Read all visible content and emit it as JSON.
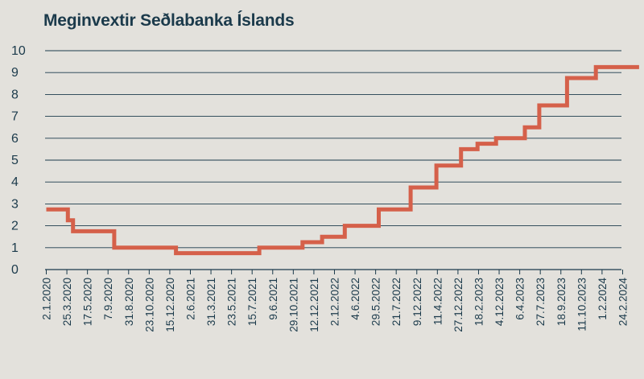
{
  "chart_data": {
    "type": "line",
    "step": true,
    "title": "Meginvextir Seðlabanka Íslands",
    "xlabel": "",
    "ylabel": "",
    "ylim": [
      0,
      10
    ],
    "yticks": [
      "0",
      "1",
      "2",
      "3",
      "4",
      "5",
      "6",
      "7",
      "8",
      "9",
      "10"
    ],
    "grid": "horizontal",
    "x_tick_labels": [
      "2.1.2020",
      "25.3.2020",
      "17.5.2020",
      "7.9.2020",
      "31.8.2020",
      "23.10.2020",
      "15.12.2020",
      "2.6.2021",
      "31.3.2021",
      "23.5.2021",
      "15.7.2021",
      "9.6.2021",
      "29.10.2021",
      "12.12.2021",
      "2.12.2022",
      "4.6.2022",
      "29.5.2022",
      "21.7.2022",
      "9.12.2022",
      "11.4.2022",
      "27.12.2022",
      "18.2.2023",
      "4.12.2023",
      "6.4.2023",
      "27.7.2023",
      "18.9.2023",
      "11.10.2023",
      "1.2.2024",
      "24.2.2024"
    ],
    "series": [
      {
        "color": "#d5604a",
        "points": [
          [
            0,
            2.75
          ],
          [
            0.8,
            2.75
          ],
          [
            1.05,
            2.25
          ],
          [
            1.3,
            1.75
          ],
          [
            3.05,
            1.75
          ],
          [
            3.3,
            1.0
          ],
          [
            6.05,
            1.0
          ],
          [
            6.3,
            0.75
          ],
          [
            10.1,
            0.75
          ],
          [
            10.35,
            1.0
          ],
          [
            12.2,
            1.0
          ],
          [
            12.45,
            1.25
          ],
          [
            13.15,
            1.25
          ],
          [
            13.4,
            1.5
          ],
          [
            14.2,
            1.5
          ],
          [
            14.5,
            2.0
          ],
          [
            15.9,
            2.0
          ],
          [
            16.15,
            2.75
          ],
          [
            17.45,
            2.75
          ],
          [
            17.7,
            3.75
          ],
          [
            18.7,
            3.75
          ],
          [
            18.95,
            4.75
          ],
          [
            19.9,
            4.75
          ],
          [
            20.15,
            5.5
          ],
          [
            20.7,
            5.5
          ],
          [
            20.95,
            5.75
          ],
          [
            21.6,
            5.75
          ],
          [
            21.85,
            6.0
          ],
          [
            23.0,
            6.0
          ],
          [
            23.25,
            6.5
          ],
          [
            23.7,
            6.5
          ],
          [
            23.95,
            7.5
          ],
          [
            25.05,
            7.5
          ],
          [
            25.3,
            8.75
          ],
          [
            26.45,
            8.75
          ],
          [
            26.7,
            9.25
          ],
          [
            28.8,
            9.25
          ]
        ]
      }
    ]
  },
  "colors": {
    "background": "#e3e1dc",
    "text": "#1b3a4b",
    "line": "#d5604a",
    "grid": "#1b3a4b"
  }
}
